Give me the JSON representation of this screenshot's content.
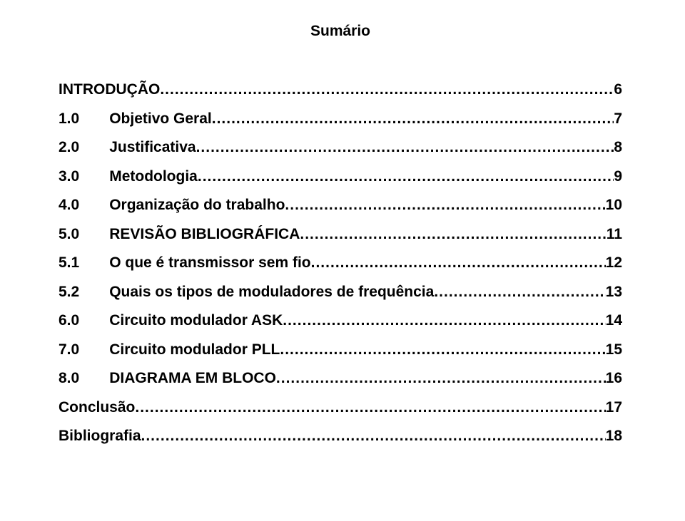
{
  "title": "Sumário",
  "title_fontsize": 21,
  "entry_fontsize": 21,
  "text_color": "#000000",
  "background_color": "#ffffff",
  "entries": [
    {
      "num": "",
      "label": "INTRODUÇÃO",
      "page": "6",
      "indent": false
    },
    {
      "num": "1.0",
      "label": "Objetivo Geral",
      "page": "7",
      "indent": true
    },
    {
      "num": "2.0",
      "label": "Justificativa",
      "page": "8",
      "indent": true
    },
    {
      "num": "3.0",
      "label": "Metodologia",
      "page": "9",
      "indent": true
    },
    {
      "num": "4.0",
      "label": "Organização do trabalho",
      "page": "10",
      "indent": true
    },
    {
      "num": "5.0",
      "label": "REVISÃO BIBLIOGRÁFICA",
      "page": "11",
      "indent": true
    },
    {
      "num": "5.1",
      "label": "O que é transmissor sem fio",
      "page": "12",
      "indent": true
    },
    {
      "num": "5.2",
      "label": "Quais os tipos de moduladores de frequência",
      "page": "13",
      "indent": true
    },
    {
      "num": "6.0",
      "label": "Circuito modulador ASK",
      "page": "14",
      "indent": true
    },
    {
      "num": "7.0",
      "label": "Circuito modulador PLL",
      "page": "15",
      "indent": true
    },
    {
      "num": "8.0",
      "label": "DIAGRAMA EM BLOCO",
      "page": "16",
      "indent": true
    },
    {
      "num": "",
      "label": "Conclusão",
      "page": "17",
      "indent": false
    },
    {
      "num": "",
      "label": "Bibliografia",
      "page": "18",
      "indent": false
    }
  ]
}
